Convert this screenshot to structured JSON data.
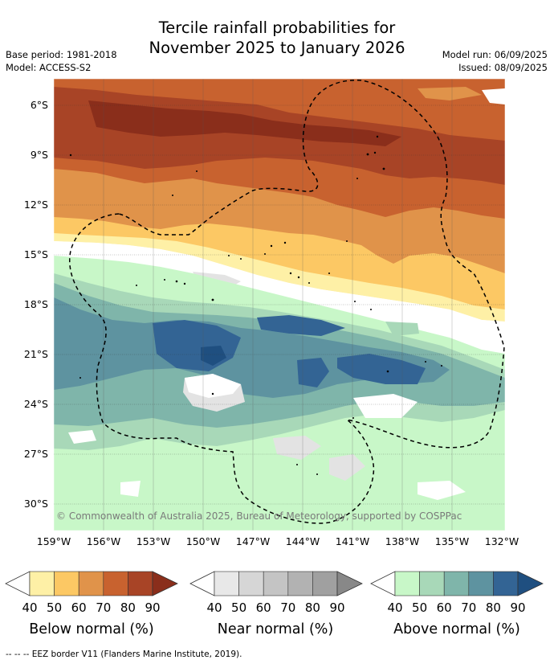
{
  "title_line1": "Tercile rainfall probabilities for",
  "title_line2": "November 2025 to January 2026",
  "base_period": "Base period: 1981-2018",
  "model": "Model: ACCESS-S2",
  "model_run": "Model run: 06/09/2025",
  "issued": "Issued: 08/09/2025",
  "copyright": "© Commonwealth of Australia 2025, Bureau of Meteorology, supported by COSPPac",
  "lat_labels": [
    "6°S",
    "9°S",
    "12°S",
    "15°S",
    "18°S",
    "21°S",
    "24°S",
    "27°S",
    "30°S"
  ],
  "lon_labels": [
    "159°W",
    "156°W",
    "153°W",
    "150°W",
    "147°W",
    "144°W",
    "141°W",
    "138°W",
    "135°W",
    "132°W"
  ],
  "legend": {
    "below": {
      "title": "Below normal (%)",
      "ticks": [
        "40",
        "50",
        "60",
        "70",
        "80",
        "90"
      ],
      "colors": [
        "#fef0a6",
        "#fcc864",
        "#e0934a",
        "#c8622f",
        "#a84426",
        "#8a2e1b"
      ]
    },
    "near": {
      "title": "Near normal (%)",
      "ticks": [
        "40",
        "50",
        "60",
        "70",
        "80",
        "90"
      ],
      "colors": [
        "#e8e8e8",
        "#d6d6d6",
        "#c4c4c4",
        "#b2b2b2",
        "#a0a0a0",
        "#888888"
      ]
    },
    "above": {
      "title": "Above normal (%)",
      "ticks": [
        "40",
        "50",
        "60",
        "70",
        "80",
        "90"
      ],
      "colors": [
        "#c8f7c8",
        "#a8d8b8",
        "#7fb5aa",
        "#5e93a0",
        "#336494",
        "#1f4f80"
      ]
    }
  },
  "footnote": "--  --  -- EEZ border V11 (Flanders Marine Institute, 2019)."
}
